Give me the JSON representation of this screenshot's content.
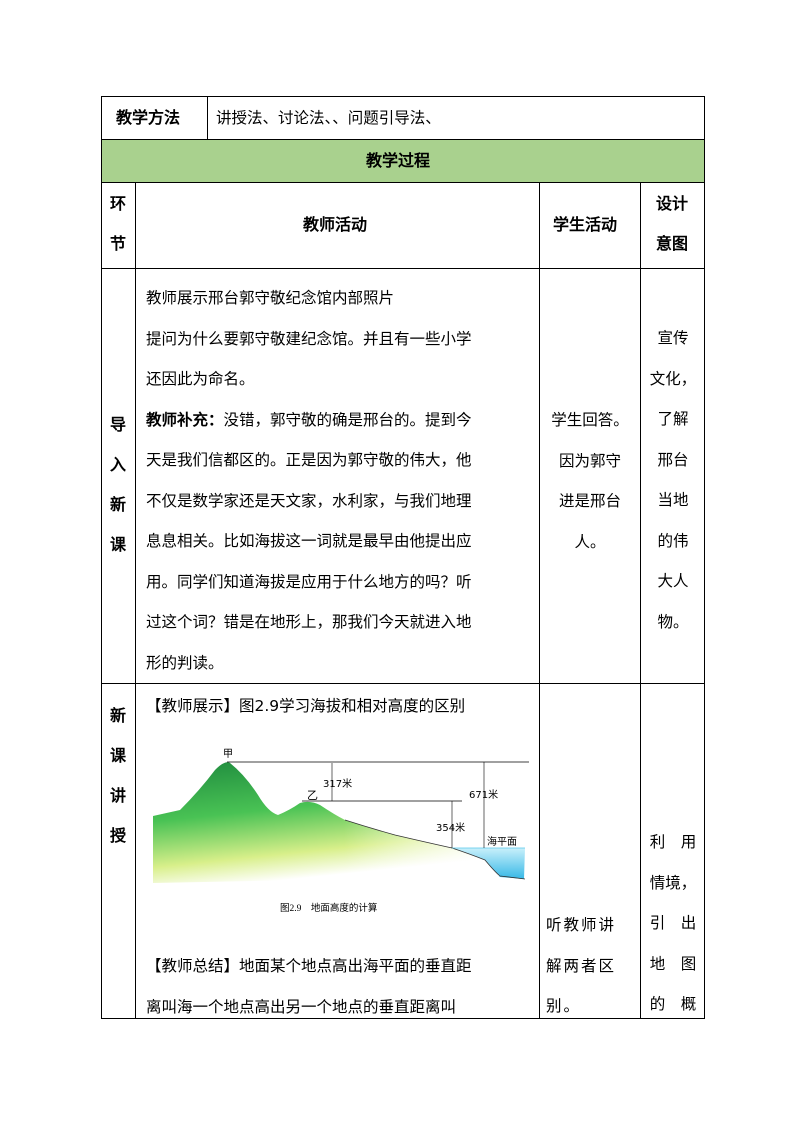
{
  "methods": {
    "label": "教学方法",
    "value": "讲授法、讨论法、、问题引导法、"
  },
  "process_title": "教学过程",
  "headers": {
    "stage": [
      "环",
      "节"
    ],
    "teacher": "教师活动",
    "student": "学生活动",
    "intent": [
      "设计",
      "意图"
    ]
  },
  "colors": {
    "header_green": "#a9d18e"
  },
  "row1": {
    "stage": [
      "导",
      "入",
      "新",
      "课"
    ],
    "teacher_lines": [
      "教师展示邢台郭守敬纪念馆内部照片",
      "提问为什么要郭守敬建纪念馆。并且有一些小学",
      "还因此为命名。",
      {
        "bold": "教师补充：",
        "text": "没错，郭守敬的确是邢台的。提到今"
      },
      "天是我们信都区的。正是因为郭守敬的伟大，他",
      "不仅是数学家还是天文家，水利家，与我们地理",
      "息息相关。比如海拔这一词就是最早由他提出应",
      "用。同学们知道海拔是应用于什么地方的吗？听",
      "过这个词？错是在地形上，那我们今天就进入地",
      "形的判读。"
    ],
    "student_lines": [
      "学生回答。",
      "因为郭守",
      "进是邢台",
      "人。"
    ],
    "intent_lines": [
      "宣传",
      "文化，",
      "了解",
      "邢台",
      "当地",
      "的伟",
      "大人",
      "物。"
    ]
  },
  "row2": {
    "stage": [
      "新",
      "课",
      "讲",
      "授"
    ],
    "teacher_line1": "【教师展示】图2.9学习海拔和相对高度的区别",
    "figure": {
      "labels": {
        "peak_a": "甲",
        "peak_b": "乙",
        "rel_height": "317米",
        "alt_a": "671米",
        "alt_b": "354米",
        "sea": "海平面"
      },
      "caption": "图2.9　地面高度的计算"
    },
    "teacher_lines_after": [
      "【教师总结】地面某个地点高出海平面的垂直距",
      "离叫海一个地点高出另一个地点的垂直距离叫"
    ],
    "student_lines": [
      "听教师讲",
      "解两者区",
      "别。"
    ],
    "intent_lines": [
      "利　用",
      "情境，",
      "引　出",
      "地　图",
      "的　概"
    ]
  }
}
